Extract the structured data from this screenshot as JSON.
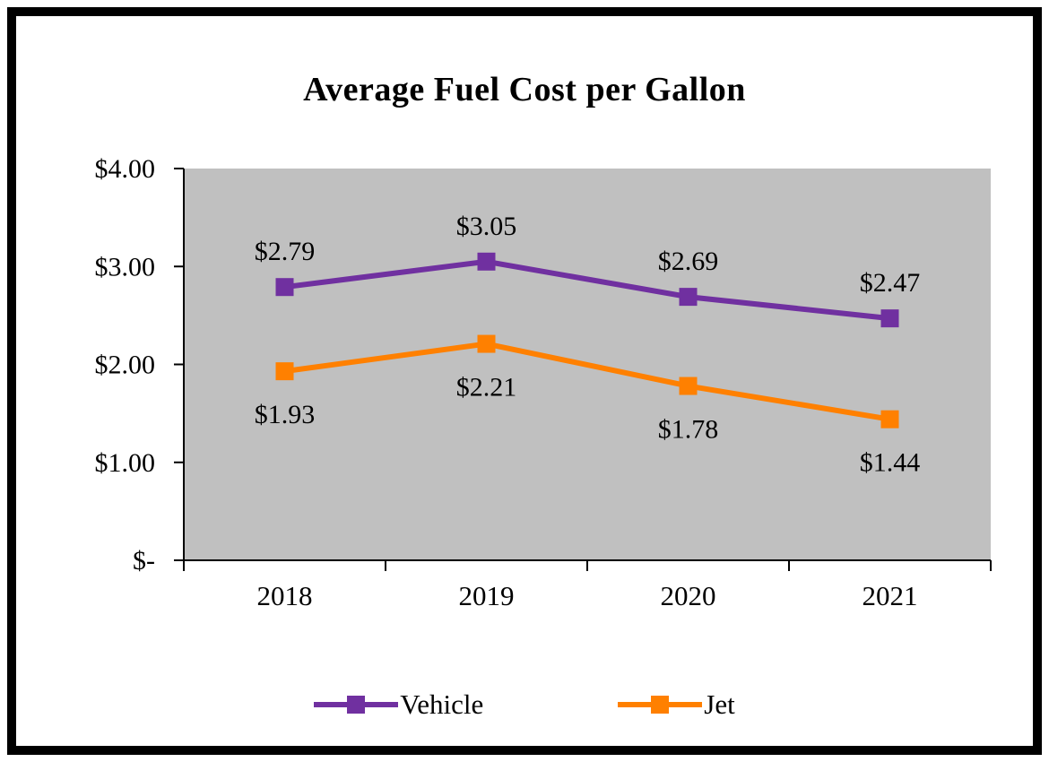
{
  "chart_data": {
    "type": "line",
    "title": "Average Fuel Cost per Gallon",
    "categories": [
      "2018",
      "2019",
      "2020",
      "2021"
    ],
    "series": [
      {
        "name": "Vehicle",
        "color": "#7030A0",
        "values": [
          2.79,
          3.05,
          2.69,
          2.47
        ],
        "labels": [
          "$2.79",
          "$3.05",
          "$2.69",
          "$2.47"
        ],
        "label_position": "above"
      },
      {
        "name": "Jet",
        "color": "#FF8000",
        "values": [
          1.93,
          2.21,
          1.78,
          1.44
        ],
        "labels": [
          "$1.93",
          "$2.21",
          "$1.78",
          "$1.44"
        ],
        "label_position": "below"
      }
    ],
    "y_ticks": [
      {
        "label": "$4.00",
        "value": 4
      },
      {
        "label": "$3.00",
        "value": 3
      },
      {
        "label": "$2.00",
        "value": 2
      },
      {
        "label": "$1.00",
        "value": 1
      },
      {
        "label": "$-",
        "value": 0
      }
    ],
    "ylim": [
      0,
      4
    ],
    "xlabel": "",
    "ylabel": "",
    "plot_bg": "#C0C0C0",
    "axis_color": "#000000",
    "grid": false,
    "legend_position": "bottom",
    "marker": "square",
    "line_width": 6
  }
}
